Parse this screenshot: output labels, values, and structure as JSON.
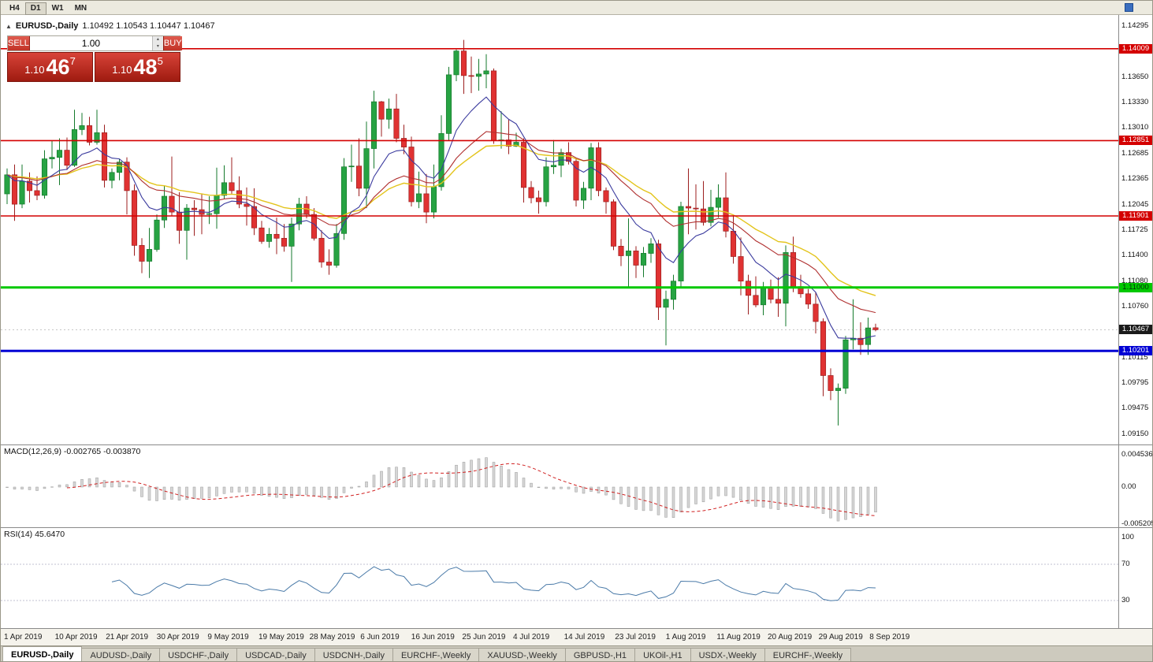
{
  "toolbar": {
    "timeframes": [
      "H4",
      "D1",
      "W1",
      "MN"
    ],
    "active": "D1"
  },
  "chart": {
    "symbol": "EURUSD-,Daily",
    "ohlc": "1.10492 1.10543 1.10447 1.10467",
    "collapse_icon": "▲"
  },
  "one_click": {
    "sell_label": "SELL",
    "buy_label": "BUY",
    "volume": "1.00",
    "sell_price": {
      "prefix": "1.10",
      "big": "46",
      "sup": "7"
    },
    "buy_price": {
      "prefix": "1.10",
      "big": "48",
      "sup": "5"
    }
  },
  "price_scale": {
    "ticks": [
      "1.14295",
      "1.13650",
      "1.13330",
      "1.13010",
      "1.12685",
      "1.12365",
      "1.12045",
      "1.11725",
      "1.11400",
      "1.11080",
      "1.10760",
      "1.10115",
      "1.09795",
      "1.09475",
      "1.09150"
    ],
    "levels": [
      {
        "label": "1.14009",
        "price": 1.14009,
        "bg": "#d40000",
        "text": "#ffffff"
      },
      {
        "label": "1.12851",
        "price": 1.12851,
        "bg": "#d40000",
        "text": "#ffffff"
      },
      {
        "label": "1.11901",
        "price": 1.11901,
        "bg": "#d40000",
        "text": "#ffffff"
      },
      {
        "label": "1.11000",
        "price": 1.11,
        "bg": "#00c800",
        "text": "#00320a"
      },
      {
        "label": "1.10201",
        "price": 1.10201,
        "bg": "#0000d4",
        "text": "#ffffff"
      }
    ],
    "current": {
      "label": "1.10467",
      "price": 1.10467,
      "bg": "#1a1a1a",
      "text": "#ffffff"
    }
  },
  "macd": {
    "label": "MACD(12,26,9) -0.002765 -0.003870",
    "scale": [
      {
        "label": "0.004536",
        "value": 0.004536
      },
      {
        "label": "0.00",
        "value": 0
      },
      {
        "label": "-0.005205",
        "value": -0.005205
      }
    ],
    "params": {
      "fast": 12,
      "slow": 26,
      "signal": 9
    }
  },
  "rsi": {
    "label": "RSI(14) 45.6470",
    "scale": [
      {
        "label": "100",
        "value": 100
      },
      {
        "label": "70",
        "value": 70
      },
      {
        "label": "30",
        "value": 30
      }
    ],
    "period": 14,
    "levels": [
      70,
      30
    ]
  },
  "date_axis": [
    "1 Apr 2019",
    "10 Apr 2019",
    "21 Apr 2019",
    "30 Apr 2019",
    "9 May 2019",
    "19 May 2019",
    "28 May 2019",
    "6 Jun 2019",
    "16 Jun 2019",
    "25 Jun 2019",
    "4 Jul 2019",
    "14 Jul 2019",
    "23 Jul 2019",
    "1 Aug 2019",
    "11 Aug 2019",
    "20 Aug 2019",
    "29 Aug 2019",
    "8 Sep 2019"
  ],
  "tabs": {
    "active": 0,
    "items": [
      "EURUSD-,Daily",
      "AUDUSD-,Daily",
      "USDCHF-,Daily",
      "USDCAD-,Daily",
      "USDCNH-,Daily",
      "EURCHF-,Weekly",
      "XAUUSD-,Weekly",
      "GBPUSD-,H1",
      "UKOil-,H1",
      "USDX-,Weekly",
      "EURCHF-,Weekly"
    ]
  },
  "chart_data": {
    "type": "candlestick",
    "symbol": "EURUSD",
    "timeframe": "Daily",
    "title": "EURUSD-,Daily",
    "y_range": [
      1.0915,
      1.14295
    ],
    "x_labels": [
      "1 Apr 2019",
      "10 Apr 2019",
      "21 Apr 2019",
      "30 Apr 2019",
      "9 May 2019",
      "19 May 2019",
      "28 May 2019",
      "6 Jun 2019",
      "16 Jun 2019",
      "25 Jun 2019",
      "4 Jul 2019",
      "14 Jul 2019",
      "23 Jul 2019",
      "1 Aug 2019",
      "11 Aug 2019",
      "20 Aug 2019",
      "29 Aug 2019",
      "8 Sep 2019"
    ],
    "colors": {
      "up": "#27a343",
      "down": "#e03232",
      "up_stroke": "#157a2c",
      "down_stroke": "#9c1f1f",
      "ma_fast": "#3b3b9e",
      "ma_mid": "#b03030",
      "ma_slow": "#e3c41c",
      "macd_hist": "#d6d6d6",
      "macd_hist_stroke": "#9a9a9a",
      "macd_signal": "#d02020",
      "rsi_line": "#4a7aa8",
      "current_price_line": "#c4c4c4"
    },
    "h_lines": [
      {
        "price": 1.14009,
        "color": "#d40000",
        "width": 1.6
      },
      {
        "price": 1.12851,
        "color": "#d40000",
        "width": 1.6
      },
      {
        "price": 1.11901,
        "color": "#d40000",
        "width": 1.6
      },
      {
        "price": 1.11,
        "color": "#00c800",
        "width": 3
      },
      {
        "price": 1.10201,
        "color": "#0000d4",
        "width": 3
      }
    ],
    "ma_periods": {
      "fast": 9,
      "mid": 21,
      "slow": 30
    },
    "candles": [
      [
        1.1218,
        1.125,
        1.1205,
        1.1242
      ],
      [
        1.1242,
        1.1255,
        1.1184,
        1.1205
      ],
      [
        1.1205,
        1.1255,
        1.12,
        1.1234
      ],
      [
        1.1234,
        1.1245,
        1.1207,
        1.1222
      ],
      [
        1.1222,
        1.124,
        1.121,
        1.1216
      ],
      [
        1.1216,
        1.1273,
        1.1212,
        1.1262
      ],
      [
        1.1262,
        1.1285,
        1.125,
        1.1264
      ],
      [
        1.1264,
        1.1288,
        1.1229,
        1.1273
      ],
      [
        1.1273,
        1.1289,
        1.1248,
        1.1254
      ],
      [
        1.1254,
        1.1324,
        1.1252,
        1.1299
      ],
      [
        1.1299,
        1.132,
        1.1292,
        1.1304
      ],
      [
        1.1304,
        1.1315,
        1.1279,
        1.1283
      ],
      [
        1.1283,
        1.1324,
        1.128,
        1.1295
      ],
      [
        1.1295,
        1.1305,
        1.1226,
        1.1235
      ],
      [
        1.1235,
        1.125,
        1.1225,
        1.1245
      ],
      [
        1.1245,
        1.1262,
        1.1235,
        1.1258
      ],
      [
        1.1258,
        1.1264,
        1.1192,
        1.1222
      ],
      [
        1.1222,
        1.123,
        1.114,
        1.1153
      ],
      [
        1.1153,
        1.1162,
        1.1118,
        1.1133
      ],
      [
        1.1133,
        1.1175,
        1.1112,
        1.1148
      ],
      [
        1.1148,
        1.1192,
        1.1145,
        1.1185
      ],
      [
        1.1185,
        1.1228,
        1.1175,
        1.1215
      ],
      [
        1.1215,
        1.1265,
        1.119,
        1.1195
      ],
      [
        1.1195,
        1.122,
        1.1155,
        1.1172
      ],
      [
        1.1172,
        1.1205,
        1.1135,
        1.12
      ],
      [
        1.12,
        1.121,
        1.1165,
        1.1198
      ],
      [
        1.1198,
        1.1218,
        1.1167,
        1.1192
      ],
      [
        1.1192,
        1.1215,
        1.118,
        1.1193
      ],
      [
        1.1193,
        1.1251,
        1.1174,
        1.1216
      ],
      [
        1.1216,
        1.1254,
        1.1212,
        1.1232
      ],
      [
        1.1232,
        1.1264,
        1.1218,
        1.1222
      ],
      [
        1.1222,
        1.124,
        1.12,
        1.1205
      ],
      [
        1.1205,
        1.1226,
        1.1178,
        1.1202
      ],
      [
        1.1202,
        1.1225,
        1.1166,
        1.1175
      ],
      [
        1.1175,
        1.1184,
        1.1155,
        1.1158
      ],
      [
        1.1158,
        1.1175,
        1.115,
        1.1167
      ],
      [
        1.1167,
        1.1188,
        1.1142,
        1.1162
      ],
      [
        1.1162,
        1.118,
        1.1145,
        1.1152
      ],
      [
        1.1152,
        1.1188,
        1.1107,
        1.118
      ],
      [
        1.118,
        1.1213,
        1.1172,
        1.1205
      ],
      [
        1.1205,
        1.1215,
        1.1187,
        1.1192
      ],
      [
        1.1192,
        1.12,
        1.1159,
        1.1162
      ],
      [
        1.1162,
        1.1172,
        1.1125,
        1.1132
      ],
      [
        1.1132,
        1.1148,
        1.1116,
        1.1128
      ],
      [
        1.1128,
        1.118,
        1.1125,
        1.1168
      ],
      [
        1.1168,
        1.1263,
        1.116,
        1.1252
      ],
      [
        1.1252,
        1.128,
        1.1233,
        1.1253
      ],
      [
        1.1253,
        1.1288,
        1.1215,
        1.1225
      ],
      [
        1.1225,
        1.1309,
        1.12,
        1.1275
      ],
      [
        1.1275,
        1.1348,
        1.125,
        1.1334
      ],
      [
        1.1334,
        1.1335,
        1.129,
        1.1312
      ],
      [
        1.1312,
        1.1338,
        1.13,
        1.1325
      ],
      [
        1.1325,
        1.1344,
        1.1283,
        1.1288
      ],
      [
        1.1288,
        1.1305,
        1.1268,
        1.1277
      ],
      [
        1.1277,
        1.129,
        1.1202,
        1.1208
      ],
      [
        1.1208,
        1.1246,
        1.12,
        1.1218
      ],
      [
        1.1218,
        1.1243,
        1.1181,
        1.1195
      ],
      [
        1.1195,
        1.1255,
        1.1187,
        1.1227
      ],
      [
        1.1227,
        1.1317,
        1.1222,
        1.1294
      ],
      [
        1.1294,
        1.1378,
        1.1285,
        1.1368
      ],
      [
        1.1368,
        1.14,
        1.136,
        1.1398
      ],
      [
        1.1398,
        1.1412,
        1.1344,
        1.1367
      ],
      [
        1.1367,
        1.1391,
        1.1345,
        1.1366
      ],
      [
        1.1366,
        1.1388,
        1.1348,
        1.1369
      ],
      [
        1.1369,
        1.1394,
        1.1351,
        1.1373
      ],
      [
        1.1373,
        1.1376,
        1.1281,
        1.1285
      ],
      [
        1.1285,
        1.1322,
        1.1275,
        1.1286
      ],
      [
        1.1286,
        1.1312,
        1.1268,
        1.1278
      ],
      [
        1.1278,
        1.1295,
        1.1277,
        1.1283
      ],
      [
        1.1283,
        1.1288,
        1.1207,
        1.1226
      ],
      [
        1.1226,
        1.1234,
        1.1206,
        1.1213
      ],
      [
        1.1213,
        1.1222,
        1.1193,
        1.1208
      ],
      [
        1.1208,
        1.1264,
        1.1202,
        1.1252
      ],
      [
        1.1252,
        1.1286,
        1.1243,
        1.1254
      ],
      [
        1.1254,
        1.1275,
        1.1239,
        1.127
      ],
      [
        1.127,
        1.1283,
        1.1255,
        1.1259
      ],
      [
        1.1259,
        1.1263,
        1.1202,
        1.121
      ],
      [
        1.121,
        1.1233,
        1.1199,
        1.1225
      ],
      [
        1.1225,
        1.1282,
        1.121,
        1.1276
      ],
      [
        1.1276,
        1.1283,
        1.1215,
        1.1222
      ],
      [
        1.1222,
        1.1226,
        1.1193,
        1.1208
      ],
      [
        1.1208,
        1.1211,
        1.1147,
        1.1152
      ],
      [
        1.1152,
        1.1161,
        1.1127,
        1.114
      ],
      [
        1.114,
        1.1187,
        1.1101,
        1.1146
      ],
      [
        1.1146,
        1.1152,
        1.1112,
        1.1128
      ],
      [
        1.1128,
        1.1151,
        1.1113,
        1.1143
      ],
      [
        1.1143,
        1.1162,
        1.1131,
        1.1155
      ],
      [
        1.1155,
        1.116,
        1.1059,
        1.1075
      ],
      [
        1.1075,
        1.1096,
        1.1027,
        1.1085
      ],
      [
        1.1085,
        1.1116,
        1.1072,
        1.1108
      ],
      [
        1.1108,
        1.1208,
        1.1101,
        1.1202
      ],
      [
        1.1202,
        1.125,
        1.1167,
        1.12
      ],
      [
        1.12,
        1.123,
        1.1173,
        1.1199
      ],
      [
        1.1199,
        1.1234,
        1.1178,
        1.1182
      ],
      [
        1.1182,
        1.1223,
        1.1177,
        1.1201
      ],
      [
        1.1201,
        1.123,
        1.1188,
        1.1213
      ],
      [
        1.1213,
        1.1245,
        1.1163,
        1.1171
      ],
      [
        1.1171,
        1.1192,
        1.113,
        1.1139
      ],
      [
        1.1139,
        1.1163,
        1.109,
        1.1108
      ],
      [
        1.1108,
        1.1116,
        1.1066,
        1.109
      ],
      [
        1.109,
        1.1114,
        1.1075,
        1.1078
      ],
      [
        1.1078,
        1.1107,
        1.1065,
        1.11
      ],
      [
        1.11,
        1.111,
        1.108,
        1.1085
      ],
      [
        1.1085,
        1.1113,
        1.1063,
        1.108
      ],
      [
        1.108,
        1.1153,
        1.1051,
        1.1144
      ],
      [
        1.1144,
        1.1164,
        1.1094,
        1.1101
      ],
      [
        1.1101,
        1.1116,
        1.1087,
        1.1092
      ],
      [
        1.1092,
        1.1098,
        1.1073,
        1.1079
      ],
      [
        1.1079,
        1.1094,
        1.1042,
        1.1057
      ],
      [
        1.1057,
        1.1061,
        1.0963,
        1.0989
      ],
      [
        1.0989,
        1.0998,
        1.0958,
        1.097
      ],
      [
        1.097,
        1.0979,
        1.0926,
        1.0973
      ],
      [
        1.0973,
        1.1039,
        1.0966,
        1.1034
      ],
      [
        1.1034,
        1.1085,
        1.1022,
        1.1036
      ],
      [
        1.1036,
        1.1056,
        1.1015,
        1.1028
      ],
      [
        1.1028,
        1.1062,
        1.1015,
        1.1049
      ],
      [
        1.10492,
        1.10543,
        1.10447,
        1.10467
      ]
    ]
  }
}
